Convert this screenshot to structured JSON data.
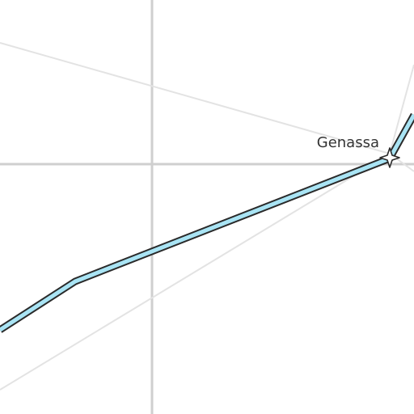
{
  "map": {
    "background_color": "#ffffff",
    "gridline_color": "#cfcfcf",
    "minor_road_color": "#e3e3e3",
    "rail_fill_color": "#a9e4f4",
    "rail_casing_color": "#2a2a2a",
    "station_fill_color": "#ffffff",
    "label_color": "#333333",
    "station": {
      "name": "Genassa",
      "icon": "star-station-icon"
    }
  }
}
